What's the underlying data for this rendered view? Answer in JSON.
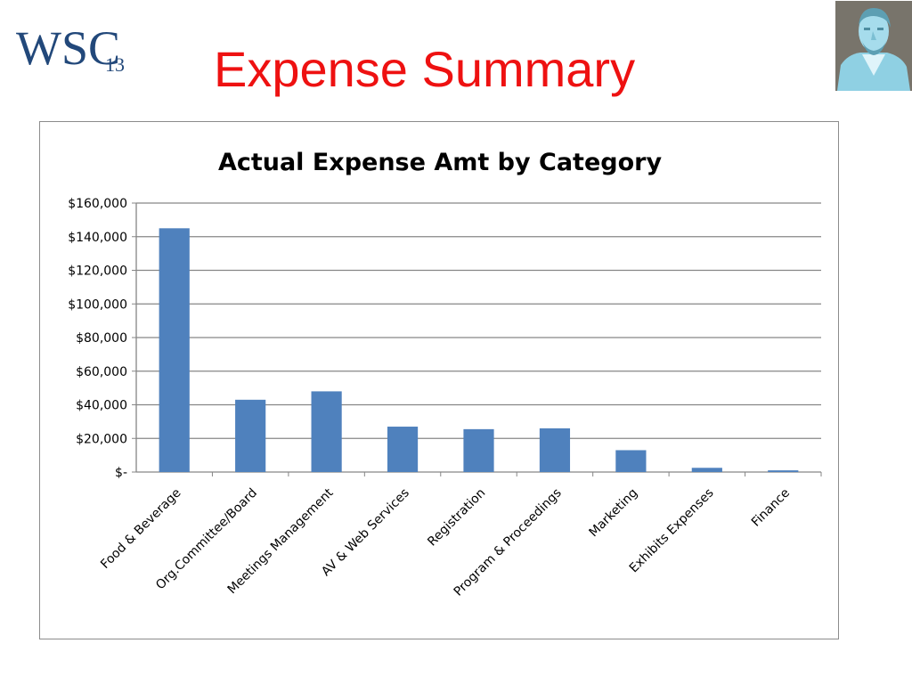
{
  "slide": {
    "title": "Expense Summary",
    "logo_text": "WSC",
    "logo_year": "13",
    "logo_color": "#22487a",
    "title_color": "#ee1111"
  },
  "chart_data": {
    "type": "bar",
    "title": "Actual Expense Amt by Category",
    "xlabel": "",
    "ylabel": "",
    "categories": [
      "Food & Beverage",
      "Org.Committee/Board",
      "Meetings Management",
      "AV & Web Services",
      "Registration",
      "Program & Proceedings",
      "Marketing",
      "Exhibits Expenses",
      "Finance"
    ],
    "values": [
      145000,
      43000,
      48000,
      27000,
      25500,
      26000,
      13000,
      2500,
      1000
    ],
    "ylim": [
      0,
      160000
    ],
    "yticks": [
      0,
      20000,
      40000,
      60000,
      80000,
      100000,
      120000,
      140000,
      160000
    ],
    "ytick_labels": [
      "$-",
      "$20,000",
      "$40,000",
      "$60,000",
      "$80,000",
      "$100,000",
      "$120,000",
      "$140,000",
      "$160,000"
    ],
    "grid": true,
    "legend": "none",
    "bar_color": "#4f81bd",
    "grid_color": "#868686"
  }
}
